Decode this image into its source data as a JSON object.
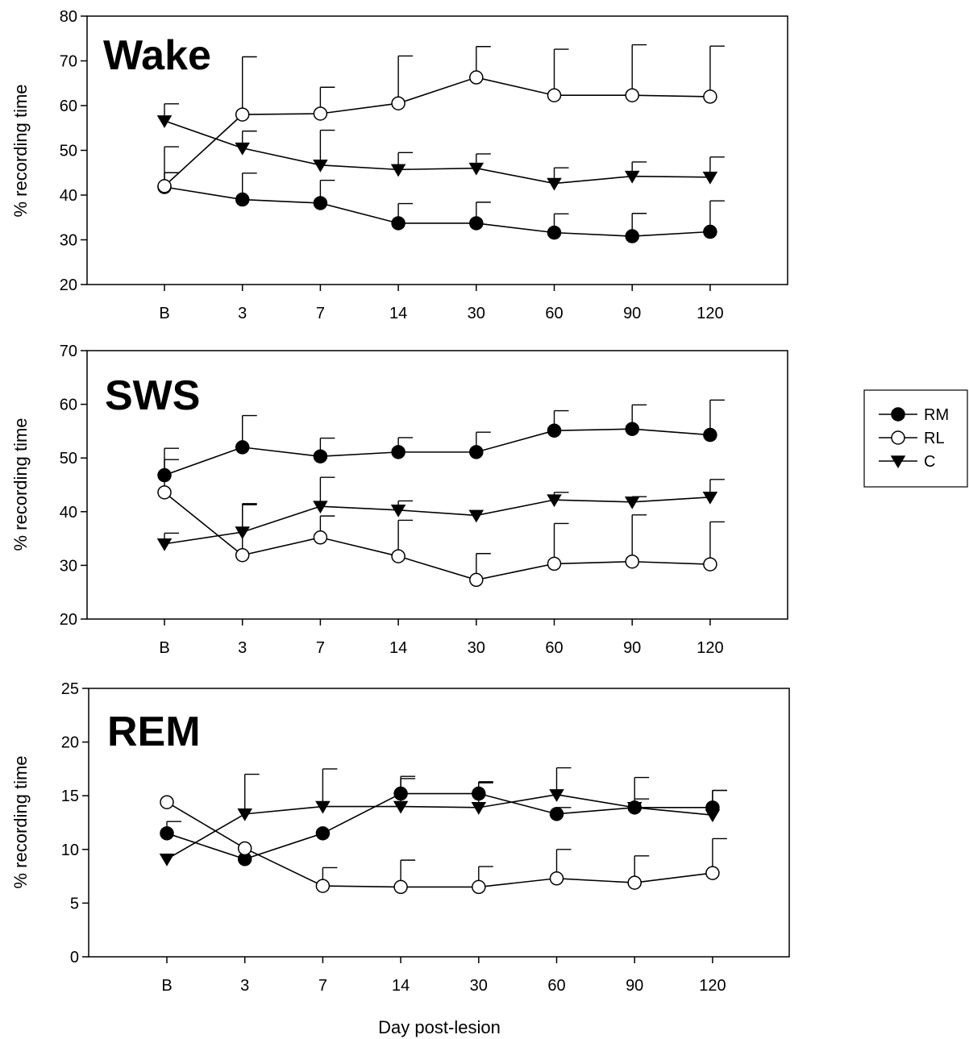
{
  "chart_data": [
    {
      "type": "line",
      "title": "Wake",
      "xlabel": "",
      "ylabel": "% recording time",
      "ylim": [
        20,
        80
      ],
      "yticks": [
        20,
        30,
        40,
        50,
        60,
        70,
        80
      ],
      "categories": [
        "B",
        "3",
        "7",
        "14",
        "30",
        "60",
        "90",
        "120"
      ],
      "series": [
        {
          "name": "RM",
          "marker": "filled-circle",
          "values": [
            41.8,
            39.0,
            38.2,
            33.7,
            33.7,
            31.6,
            30.8,
            31.8
          ],
          "error": [
            9.0,
            5.9,
            5.1,
            4.4,
            4.7,
            4.2,
            5.1,
            6.9
          ]
        },
        {
          "name": "RL",
          "marker": "open-circle",
          "values": [
            42.0,
            58.0,
            58.2,
            60.5,
            66.3,
            62.3,
            62.3,
            62.0
          ],
          "error": [
            3.0,
            12.9,
            5.9,
            10.6,
            6.9,
            10.3,
            11.3,
            11.3
          ]
        },
        {
          "name": "C",
          "marker": "filled-triangle-down",
          "values": [
            56.6,
            50.5,
            46.7,
            45.7,
            46.0,
            42.6,
            44.2,
            44.0
          ],
          "error": [
            3.8,
            3.8,
            7.8,
            3.8,
            3.2,
            3.5,
            3.2,
            4.5
          ]
        }
      ]
    },
    {
      "type": "line",
      "title": "SWS",
      "xlabel": "",
      "ylabel": "% recording time",
      "ylim": [
        20,
        70
      ],
      "yticks": [
        20,
        30,
        40,
        50,
        60,
        70
      ],
      "categories": [
        "B",
        "3",
        "7",
        "14",
        "30",
        "60",
        "90",
        "120"
      ],
      "series": [
        {
          "name": "RM",
          "marker": "filled-circle",
          "values": [
            46.8,
            52.0,
            50.3,
            51.1,
            51.1,
            55.1,
            55.4,
            54.3
          ],
          "error": [
            5.0,
            5.9,
            3.4,
            2.7,
            3.7,
            3.7,
            4.5,
            6.5
          ]
        },
        {
          "name": "RL",
          "marker": "open-circle",
          "values": [
            43.6,
            31.9,
            35.2,
            31.7,
            27.3,
            30.3,
            30.7,
            30.2
          ],
          "error": [
            6.1,
            9.4,
            4.0,
            6.7,
            4.9,
            7.5,
            8.7,
            7.9
          ]
        },
        {
          "name": "C",
          "marker": "filled-triangle-down",
          "values": [
            34.0,
            36.2,
            41.0,
            40.3,
            39.3,
            42.2,
            41.8,
            42.7
          ],
          "error": [
            2.0,
            5.3,
            5.4,
            1.7,
            0.0,
            1.4,
            1.0,
            3.3
          ]
        }
      ]
    },
    {
      "type": "line",
      "title": "REM",
      "xlabel": "Day post-lesion",
      "ylabel": "% recording time",
      "ylim": [
        0,
        25
      ],
      "yticks": [
        0,
        5,
        10,
        15,
        20,
        25
      ],
      "categories": [
        "B",
        "3",
        "7",
        "14",
        "30",
        "60",
        "90",
        "120"
      ],
      "series": [
        {
          "name": "RM",
          "marker": "filled-circle",
          "values": [
            11.5,
            9.1,
            11.5,
            15.2,
            15.2,
            13.3,
            13.9,
            13.9
          ],
          "error": [
            1.1,
            0.0,
            0.0,
            1.6,
            1.1,
            0.6,
            0.8,
            1.6
          ]
        },
        {
          "name": "RL",
          "marker": "open-circle",
          "values": [
            14.4,
            10.1,
            6.6,
            6.5,
            6.5,
            7.3,
            6.9,
            7.8
          ],
          "error": [
            0.0,
            0.0,
            1.7,
            2.5,
            1.9,
            2.7,
            2.5,
            3.2
          ]
        },
        {
          "name": "C",
          "marker": "filled-triangle-down",
          "values": [
            9.1,
            13.3,
            14.0,
            14.0,
            13.9,
            15.1,
            13.9,
            13.2
          ],
          "error": [
            0.0,
            3.7,
            3.5,
            2.6,
            2.3,
            2.5,
            2.8,
            2.3
          ]
        }
      ]
    }
  ],
  "legend": {
    "placement": "right",
    "entries": [
      {
        "label": "RM",
        "marker": "filled-circle"
      },
      {
        "label": "RL",
        "marker": "open-circle"
      },
      {
        "label": "C",
        "marker": "filled-triangle-down"
      }
    ]
  },
  "colors": {
    "line": "#000000",
    "marker_fill": "#000000",
    "open_marker_fill": "#ffffff",
    "background": "#ffffff"
  }
}
